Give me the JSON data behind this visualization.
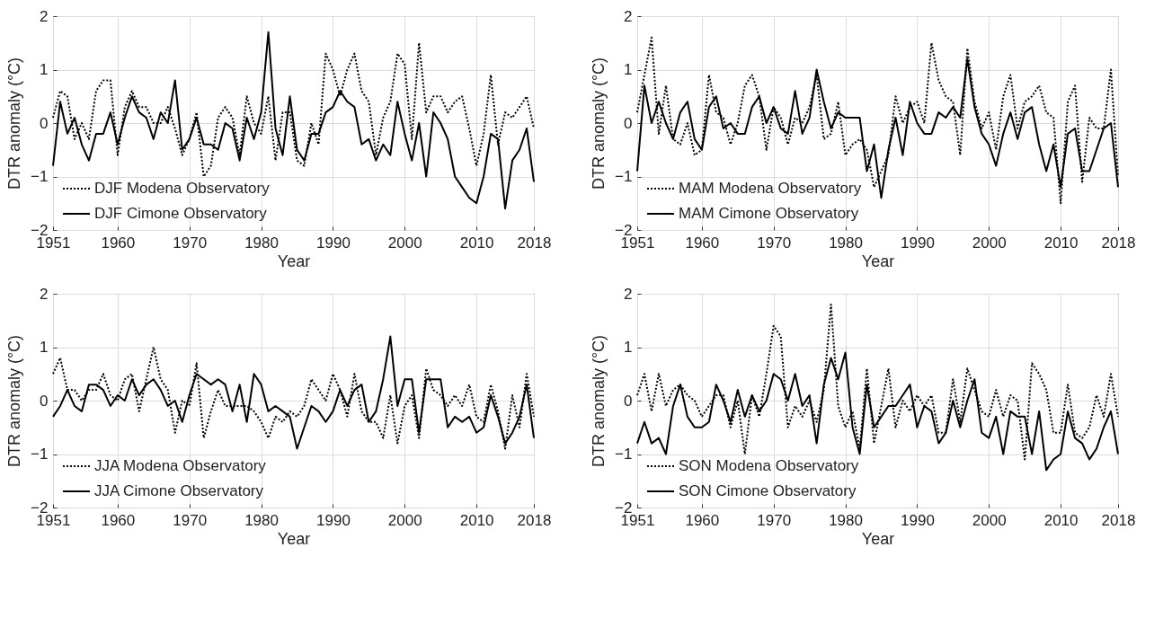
{
  "chart_data": [
    {
      "type": "line",
      "xlabel": "Year",
      "ylabel": "DTR anomaly (°C)",
      "xlim": [
        1951,
        2018
      ],
      "ylim": [
        -2,
        2
      ],
      "xticks": [
        1951,
        1960,
        1970,
        1980,
        1990,
        2000,
        2010,
        2018
      ],
      "yticks": [
        -2,
        -1,
        0,
        1,
        2
      ],
      "grid": true,
      "legend": "bottom left",
      "x": [
        1951,
        1952,
        1953,
        1954,
        1955,
        1956,
        1957,
        1958,
        1959,
        1960,
        1961,
        1962,
        1963,
        1964,
        1965,
        1966,
        1967,
        1968,
        1969,
        1970,
        1971,
        1972,
        1973,
        1974,
        1975,
        1976,
        1977,
        1978,
        1979,
        1980,
        1981,
        1982,
        1983,
        1984,
        1985,
        1986,
        1987,
        1988,
        1989,
        1990,
        1991,
        1992,
        1993,
        1994,
        1995,
        1996,
        1997,
        1998,
        1999,
        2000,
        2001,
        2002,
        2003,
        2004,
        2005,
        2006,
        2007,
        2008,
        2009,
        2010,
        2011,
        2012,
        2013,
        2014,
        2015,
        2016,
        2017,
        2018
      ],
      "series": [
        {
          "name": "DJF Modena Observatory",
          "color": "#000000",
          "line_style": "dotted",
          "values": [
            0.1,
            0.6,
            0.5,
            -0.3,
            0.0,
            -0.3,
            0.6,
            0.8,
            0.8,
            -0.6,
            0.3,
            0.6,
            0.3,
            0.3,
            0.0,
            0.0,
            0.3,
            -0.1,
            -0.6,
            -0.3,
            0.2,
            -1.0,
            -0.8,
            0.1,
            0.3,
            0.1,
            -0.6,
            0.5,
            0.0,
            -0.2,
            0.5,
            -0.7,
            0.2,
            0.2,
            -0.7,
            -0.8,
            0.0,
            -0.4,
            1.3,
            1.0,
            0.5,
            1.0,
            1.3,
            0.6,
            0.4,
            -0.6,
            0.1,
            0.4,
            1.3,
            1.1,
            -0.3,
            1.5,
            0.2,
            0.5,
            0.5,
            0.2,
            0.4,
            0.5,
            -0.1,
            -0.8,
            -0.2,
            0.9,
            -0.4,
            0.2,
            0.1,
            0.3,
            0.5,
            -0.1
          ]
        },
        {
          "name": "DJF Cimone Observatory",
          "color": "#000000",
          "line_style": "solid",
          "values": [
            -0.8,
            0.4,
            -0.2,
            0.1,
            -0.4,
            -0.7,
            -0.2,
            -0.2,
            0.2,
            -0.4,
            0.1,
            0.5,
            0.2,
            0.1,
            -0.3,
            0.2,
            0.0,
            0.8,
            -0.5,
            -0.3,
            0.1,
            -0.4,
            -0.4,
            -0.5,
            0.0,
            -0.1,
            -0.7,
            0.1,
            -0.3,
            0.2,
            1.7,
            -0.1,
            -0.6,
            0.5,
            -0.5,
            -0.7,
            -0.2,
            -0.2,
            0.2,
            0.3,
            0.6,
            0.4,
            0.3,
            -0.4,
            -0.3,
            -0.7,
            -0.4,
            -0.6,
            0.4,
            -0.2,
            -0.7,
            0.0,
            -1.0,
            0.2,
            0.0,
            -0.3,
            -1.0,
            -1.2,
            -1.4,
            -1.5,
            -1.0,
            -0.2,
            -0.3,
            -1.6,
            -0.7,
            -0.5,
            -0.1,
            -1.1
          ]
        }
      ]
    },
    {
      "type": "line",
      "xlabel": "Year",
      "ylabel": "DTR anomaly (°C)",
      "xlim": [
        1951,
        2018
      ],
      "ylim": [
        -2,
        2
      ],
      "xticks": [
        1951,
        1960,
        1970,
        1980,
        1990,
        2000,
        2010,
        2018
      ],
      "yticks": [
        -2,
        -1,
        0,
        1,
        2
      ],
      "grid": true,
      "legend": "bottom left",
      "x": [
        1951,
        1952,
        1953,
        1954,
        1955,
        1956,
        1957,
        1958,
        1959,
        1960,
        1961,
        1962,
        1963,
        1964,
        1965,
        1966,
        1967,
        1968,
        1969,
        1970,
        1971,
        1972,
        1973,
        1974,
        1975,
        1976,
        1977,
        1978,
        1979,
        1980,
        1981,
        1982,
        1983,
        1984,
        1985,
        1986,
        1987,
        1988,
        1989,
        1990,
        1991,
        1992,
        1993,
        1994,
        1995,
        1996,
        1997,
        1998,
        1999,
        2000,
        2001,
        2002,
        2003,
        2004,
        2005,
        2006,
        2007,
        2008,
        2009,
        2010,
        2011,
        2012,
        2013,
        2014,
        2015,
        2016,
        2017,
        2018
      ],
      "series": [
        {
          "name": "MAM Modena Observatory",
          "color": "#000000",
          "line_style": "dotted",
          "values": [
            0.2,
            0.9,
            1.6,
            -0.2,
            0.7,
            -0.3,
            -0.4,
            0.0,
            -0.6,
            -0.5,
            0.9,
            0.2,
            0.1,
            -0.4,
            0.0,
            0.7,
            0.9,
            0.5,
            -0.5,
            0.3,
            0.1,
            -0.4,
            0.1,
            0.0,
            0.3,
            0.9,
            -0.3,
            -0.2,
            0.4,
            -0.6,
            -0.4,
            -0.3,
            -0.5,
            -1.2,
            -0.9,
            -0.6,
            0.5,
            0.0,
            0.3,
            0.4,
            0.0,
            1.5,
            0.8,
            0.5,
            0.4,
            -0.6,
            1.4,
            0.4,
            -0.1,
            0.2,
            -0.5,
            0.5,
            0.9,
            -0.1,
            0.4,
            0.5,
            0.7,
            0.2,
            0.1,
            -1.5,
            0.4,
            0.7,
            -1.1,
            0.1,
            -0.1,
            -0.1,
            1.0,
            -1.0
          ]
        },
        {
          "name": "MAM Cimone Observatory",
          "color": "#000000",
          "line_style": "solid",
          "values": [
            -0.9,
            0.7,
            0.0,
            0.4,
            0.0,
            -0.3,
            0.2,
            0.4,
            -0.3,
            -0.5,
            0.3,
            0.5,
            -0.1,
            0.0,
            -0.2,
            -0.2,
            0.3,
            0.5,
            0.0,
            0.3,
            -0.1,
            -0.2,
            0.6,
            -0.2,
            0.1,
            1.0,
            0.4,
            -0.1,
            0.2,
            0.1,
            0.1,
            0.1,
            -0.9,
            -0.4,
            -1.4,
            -0.5,
            0.1,
            -0.6,
            0.4,
            0.0,
            -0.2,
            -0.2,
            0.2,
            0.1,
            0.3,
            0.1,
            1.2,
            0.3,
            -0.2,
            -0.4,
            -0.8,
            -0.2,
            0.2,
            -0.3,
            0.2,
            0.3,
            -0.4,
            -0.9,
            -0.4,
            -1.2,
            -0.2,
            -0.1,
            -0.9,
            -0.9,
            -0.5,
            -0.1,
            0.0,
            -1.2
          ]
        }
      ]
    },
    {
      "type": "line",
      "xlabel": "Year",
      "ylabel": "DTR anomaly (°C)",
      "xlim": [
        1951,
        2018
      ],
      "ylim": [
        -2,
        2
      ],
      "xticks": [
        1951,
        1960,
        1970,
        1980,
        1990,
        2000,
        2010,
        2018
      ],
      "yticks": [
        -2,
        -1,
        0,
        1,
        2
      ],
      "grid": true,
      "legend": "bottom left",
      "x": [
        1951,
        1952,
        1953,
        1954,
        1955,
        1956,
        1957,
        1958,
        1959,
        1960,
        1961,
        1962,
        1963,
        1964,
        1965,
        1966,
        1967,
        1968,
        1969,
        1970,
        1971,
        1972,
        1973,
        1974,
        1975,
        1976,
        1977,
        1978,
        1979,
        1980,
        1981,
        1982,
        1983,
        1984,
        1985,
        1986,
        1987,
        1988,
        1989,
        1990,
        1991,
        1992,
        1993,
        1994,
        1995,
        1996,
        1997,
        1998,
        1999,
        2000,
        2001,
        2002,
        2003,
        2004,
        2005,
        2006,
        2007,
        2008,
        2009,
        2010,
        2011,
        2012,
        2013,
        2014,
        2015,
        2016,
        2017,
        2018
      ],
      "series": [
        {
          "name": "JJA Modena Observatory",
          "color": "#000000",
          "line_style": "dotted",
          "values": [
            0.5,
            0.8,
            0.2,
            0.2,
            0.0,
            0.2,
            0.2,
            0.5,
            0.1,
            0.0,
            0.4,
            0.5,
            -0.2,
            0.4,
            1.0,
            0.4,
            0.2,
            -0.6,
            0.0,
            -0.1,
            0.7,
            -0.7,
            -0.2,
            0.2,
            -0.1,
            -0.1,
            -0.1,
            -0.1,
            -0.2,
            -0.4,
            -0.7,
            -0.3,
            -0.4,
            -0.2,
            -0.3,
            -0.1,
            0.4,
            0.2,
            0.0,
            0.5,
            0.2,
            -0.3,
            0.5,
            -0.2,
            -0.4,
            -0.4,
            -0.7,
            0.1,
            -0.8,
            -0.1,
            0.1,
            -0.7,
            0.6,
            0.2,
            0.1,
            -0.1,
            0.1,
            -0.1,
            0.3,
            -0.3,
            -0.4,
            0.3,
            -0.2,
            -0.9,
            0.1,
            -0.5,
            0.5,
            -0.3
          ]
        },
        {
          "name": "JJA Cimone Observatory",
          "color": "#000000",
          "line_style": "solid",
          "values": [
            -0.3,
            -0.1,
            0.2,
            -0.1,
            -0.2,
            0.3,
            0.3,
            0.2,
            -0.1,
            0.1,
            0.0,
            0.4,
            0.1,
            0.3,
            0.4,
            0.2,
            -0.1,
            0.0,
            -0.4,
            0.1,
            0.5,
            0.4,
            0.3,
            0.4,
            0.3,
            -0.2,
            0.3,
            -0.4,
            0.5,
            0.3,
            -0.2,
            -0.1,
            -0.2,
            -0.3,
            -0.9,
            -0.5,
            -0.1,
            -0.2,
            -0.4,
            -0.2,
            0.2,
            -0.1,
            0.2,
            0.3,
            -0.4,
            -0.2,
            0.4,
            1.2,
            -0.1,
            0.4,
            0.4,
            -0.6,
            0.4,
            0.4,
            0.4,
            -0.5,
            -0.3,
            -0.4,
            -0.3,
            -0.6,
            -0.5,
            0.1,
            -0.3,
            -0.8,
            -0.6,
            -0.3,
            0.3,
            -0.7
          ]
        }
      ]
    },
    {
      "type": "line",
      "xlabel": "Year",
      "ylabel": "DTR anomaly (°C)",
      "xlim": [
        1951,
        2018
      ],
      "ylim": [
        -2,
        2
      ],
      "xticks": [
        1951,
        1960,
        1970,
        1980,
        1990,
        2000,
        2010,
        2018
      ],
      "yticks": [
        -2,
        -1,
        0,
        1,
        2
      ],
      "grid": true,
      "legend": "bottom left",
      "x": [
        1951,
        1952,
        1953,
        1954,
        1955,
        1956,
        1957,
        1958,
        1959,
        1960,
        1961,
        1962,
        1963,
        1964,
        1965,
        1966,
        1967,
        1968,
        1969,
        1970,
        1971,
        1972,
        1973,
        1974,
        1975,
        1976,
        1977,
        1978,
        1979,
        1980,
        1981,
        1982,
        1983,
        1984,
        1985,
        1986,
        1987,
        1988,
        1989,
        1990,
        1991,
        1992,
        1993,
        1994,
        1995,
        1996,
        1997,
        1998,
        1999,
        2000,
        2001,
        2002,
        2003,
        2004,
        2005,
        2006,
        2007,
        2008,
        2009,
        2010,
        2011,
        2012,
        2013,
        2014,
        2015,
        2016,
        2017,
        2018
      ],
      "series": [
        {
          "name": "SON Modena Observatory",
          "color": "#000000",
          "line_style": "dotted",
          "values": [
            0.1,
            0.5,
            -0.2,
            0.5,
            -0.1,
            0.2,
            0.3,
            0.1,
            0.0,
            -0.3,
            -0.1,
            0.1,
            0.1,
            -0.5,
            0.0,
            -1.0,
            0.1,
            -0.3,
            0.5,
            1.4,
            1.2,
            -0.5,
            -0.1,
            -0.3,
            0.0,
            -0.4,
            0.2,
            1.8,
            -0.1,
            -0.5,
            -0.2,
            -0.9,
            0.6,
            -0.8,
            -0.1,
            0.6,
            -0.5,
            0.0,
            -0.2,
            0.1,
            -0.1,
            0.1,
            -0.6,
            -0.6,
            0.4,
            -0.4,
            0.6,
            0.2,
            -0.2,
            -0.3,
            0.2,
            -0.3,
            0.1,
            0.0,
            -1.1,
            0.7,
            0.5,
            0.2,
            -0.6,
            -0.6,
            0.3,
            -0.6,
            -0.7,
            -0.5,
            0.1,
            -0.3,
            0.5,
            -0.3
          ]
        },
        {
          "name": "SON Cimone Observatory",
          "color": "#000000",
          "line_style": "solid",
          "values": [
            -0.8,
            -0.4,
            -0.8,
            -0.7,
            -1.0,
            -0.1,
            0.3,
            -0.3,
            -0.5,
            -0.5,
            -0.4,
            0.3,
            0.0,
            -0.4,
            0.2,
            -0.3,
            0.1,
            -0.2,
            0.0,
            0.5,
            0.4,
            0.0,
            0.5,
            -0.1,
            0.1,
            -0.8,
            0.3,
            0.8,
            0.4,
            0.9,
            -0.5,
            -1.0,
            0.3,
            -0.5,
            -0.3,
            -0.1,
            -0.1,
            0.1,
            0.3,
            -0.5,
            -0.1,
            -0.2,
            -0.8,
            -0.6,
            0.0,
            -0.5,
            0.0,
            0.4,
            -0.6,
            -0.7,
            -0.3,
            -1.0,
            -0.2,
            -0.3,
            -0.3,
            -1.0,
            -0.2,
            -1.3,
            -1.1,
            -1.0,
            -0.2,
            -0.7,
            -0.8,
            -1.1,
            -0.9,
            -0.5,
            -0.2,
            -1.0
          ]
        }
      ]
    }
  ]
}
